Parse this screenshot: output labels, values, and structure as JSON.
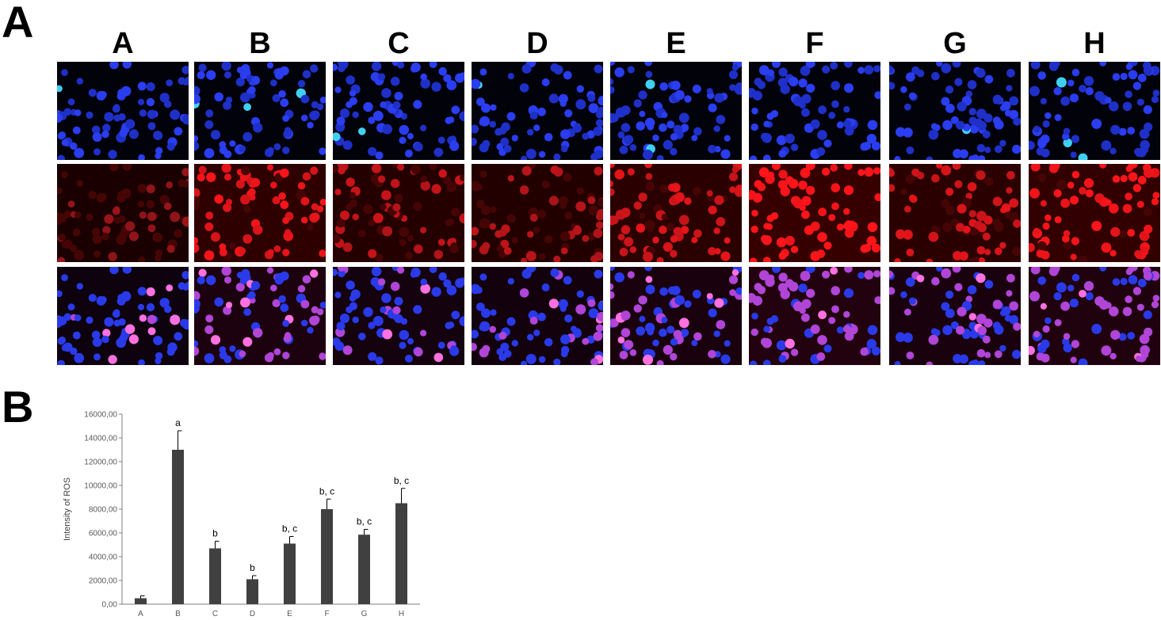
{
  "panels": {
    "a": "A",
    "b": "B"
  },
  "columns": [
    "A",
    "B",
    "C",
    "D",
    "E",
    "F",
    "G",
    "H"
  ],
  "rows": [
    {
      "channel": "blue"
    },
    {
      "channel": "red"
    },
    {
      "channel": "merge"
    }
  ],
  "red_intensity": [
    0.15,
    0.65,
    0.4,
    0.35,
    0.55,
    0.85,
    0.55,
    0.75
  ],
  "colors": {
    "bar": "#404040",
    "axis": "#7f7f7f",
    "nucleus_blue": "#2a3df0",
    "ros_red": "#e01818",
    "merge_magenta": "#c040d0"
  },
  "chart_data": {
    "type": "bar",
    "categories": [
      "A",
      "B",
      "C",
      "D",
      "E",
      "F",
      "G",
      "H"
    ],
    "values": [
      500,
      13000,
      4700,
      2100,
      5100,
      8000,
      5850,
      8500
    ],
    "errors": [
      200,
      1600,
      600,
      300,
      600,
      850,
      450,
      1250
    ],
    "annotations": [
      "",
      "a",
      "b",
      "b",
      "b, c",
      "b, c",
      "b, c",
      "b, c"
    ],
    "ylabel": "Intensity of ROS",
    "xlabel": "",
    "ylim": [
      0,
      16000
    ],
    "yticks": [
      0,
      2000,
      4000,
      6000,
      8000,
      10000,
      12000,
      14000,
      16000
    ],
    "ytick_labels": [
      "0,00",
      "2000,00",
      "4000,00",
      "6000,00",
      "8000,00",
      "10000,00",
      "12000,00",
      "14000,00",
      "16000,00"
    ],
    "grid": false
  }
}
